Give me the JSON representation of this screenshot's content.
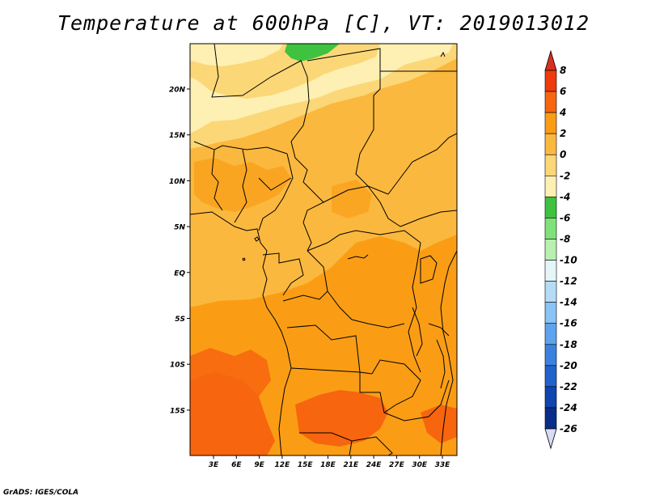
{
  "title": "Temperature at 600hPa [C], VT: 2019013012",
  "footer": "GrADS: IGES/COLA",
  "map": {
    "lat_labels": [
      "20N",
      "15N",
      "10N",
      "5N",
      "EQ",
      "5S",
      "10S",
      "15S"
    ],
    "lon_labels": [
      "3E",
      "6E",
      "9E",
      "12E",
      "15E",
      "18E",
      "21E",
      "24E",
      "27E",
      "30E",
      "33E"
    ]
  },
  "colorbar": {
    "labels": [
      "8",
      "6",
      "4",
      "2",
      "0",
      "-2",
      "-4",
      "-6",
      "-8",
      "-10",
      "-12",
      "-14",
      "-16",
      "-18",
      "-20",
      "-22",
      "-24",
      "-26"
    ],
    "colors": {
      "above_8": "#d7301f",
      "6_8": "#ee3a0d",
      "4_6": "#f7650e",
      "2_4": "#fa9d15",
      "0_2": "#fbb83e",
      "m2_0": "#fcd778",
      "m4_m2": "#fdf0b2",
      "m6_m4": "#3ec23f",
      "m8_m6": "#7ee278",
      "m10_m8": "#b8f0b0",
      "m12_m10": "#e4f6f8",
      "m14_m12": "#b4dcf6",
      "m16_m14": "#8ac3f5",
      "m18_m16": "#5ea3ee",
      "m20_m18": "#3b82e0",
      "m22_m20": "#2163cc",
      "m24_m22": "#0f45b0",
      "m26_m24": "#0a2d8a",
      "below_m26": "#d8dcf6"
    }
  }
}
